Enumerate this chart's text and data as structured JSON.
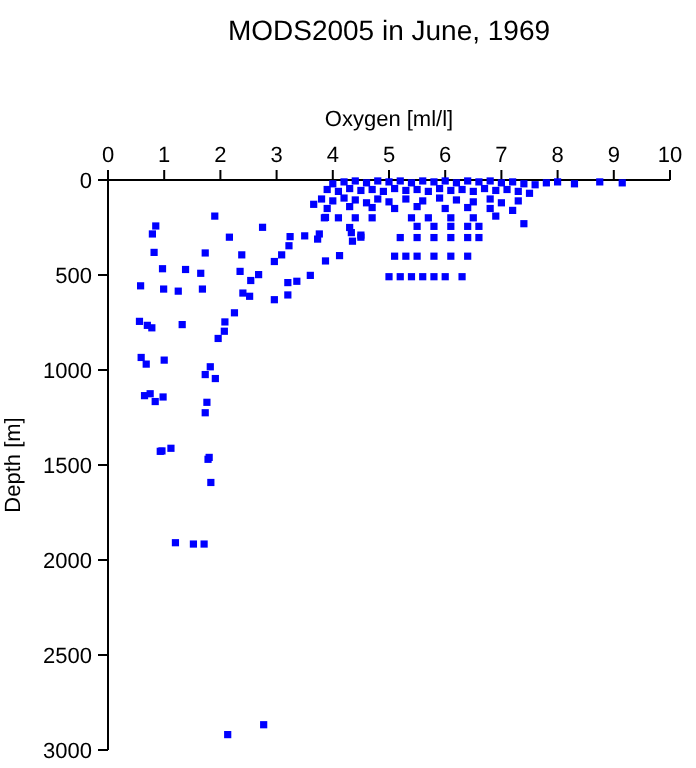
{
  "chart_data": {
    "type": "scatter",
    "title": "MODS2005 in June, 1969",
    "xlabel": "Oxygen [ml/l]",
    "ylabel": "Depth [m]",
    "xlim": [
      0,
      10
    ],
    "xticks": [
      0,
      1,
      2,
      3,
      4,
      5,
      6,
      7,
      8,
      9,
      10
    ],
    "ylim": [
      3000,
      0
    ],
    "yticks": [
      0,
      500,
      1000,
      1500,
      2000,
      2500,
      3000
    ],
    "marker": "square",
    "series": [
      {
        "color": "#0000ff",
        "x": [
          0.85,
          0.79,
          1.9,
          2.75,
          2.16,
          0.82,
          1.73,
          2.38,
          3.22,
          3.09,
          2.96,
          0.97,
          1.38,
          1.65,
          2.35,
          2.68,
          2.54,
          0.58,
          0.99,
          1.25,
          1.68,
          2.4,
          2.52,
          3.2,
          3.36,
          3.6,
          3.2,
          2.96,
          2.25,
          2.08,
          2.07,
          1.96,
          0.56,
          0.7,
          0.78,
          1.32,
          0.59,
          0.68,
          1.0,
          1.82,
          1.73,
          1.91,
          0.65,
          0.75,
          0.84,
          0.98,
          1.76,
          1.73,
          0.96,
          1.12,
          1.8,
          0.93,
          1.78,
          1.83,
          1.2,
          1.52,
          1.71,
          2.13,
          2.77,
          3.24,
          3.5,
          3.76,
          3.87,
          3.73,
          3.87,
          4.12,
          4.35,
          4.5,
          4.33,
          3.66,
          4.0,
          4.2,
          4.4,
          4.6,
          4.8,
          5.0,
          5.2,
          5.4,
          5.6,
          5.8,
          6.0,
          6.2,
          6.4,
          6.6,
          6.8,
          7.0,
          7.2,
          7.4,
          7.6,
          7.8,
          8.0,
          8.3,
          8.75,
          9.15,
          3.9,
          4.1,
          4.3,
          4.5,
          4.7,
          4.9,
          5.1,
          5.3,
          5.5,
          5.7,
          5.9,
          6.1,
          6.3,
          6.5,
          6.7,
          6.9,
          7.1,
          7.3,
          7.5,
          3.8,
          4.0,
          4.2,
          4.4,
          4.6,
          4.8,
          5.0,
          5.3,
          5.6,
          5.9,
          6.2,
          6.5,
          6.8,
          7.0,
          7.3,
          3.9,
          4.3,
          4.7,
          5.1,
          5.5,
          6.0,
          6.4,
          6.8,
          7.2,
          3.85,
          4.1,
          4.4,
          4.7,
          5.4,
          5.7,
          6.1,
          6.5,
          6.9,
          7.4,
          5.5,
          5.8,
          6.1,
          6.4,
          6.6,
          4.3,
          5.2,
          5.5,
          5.8,
          6.1,
          6.4,
          6.6,
          4.5,
          5.1,
          5.3,
          5.5,
          5.8,
          6.1,
          6.4,
          5.0,
          5.2,
          5.4,
          5.6,
          5.8,
          6.0,
          6.3
        ],
        "values": [
          242,
          284,
          190,
          249,
          301,
          381,
          384,
          394,
          346,
          394,
          429,
          467,
          471,
          491,
          481,
          498,
          529,
          557,
          574,
          585,
          574,
          595,
          612,
          540,
          533,
          502,
          605,
          630,
          699,
          747,
          796,
          834,
          744,
          765,
          778,
          761,
          934,
          969,
          948,
          983,
          1024,
          1045,
          1135,
          1125,
          1166,
          1142,
          1170,
          1225,
          1426,
          1412,
          1460,
          1428,
          1470,
          1592,
          1909,
          1916,
          1916,
          2919,
          2867,
          298,
          294,
          284,
          197,
          311,
          426,
          398,
          322,
          301,
          277,
          128,
          20,
          10,
          5,
          15,
          5,
          10,
          5,
          15,
          5,
          10,
          5,
          15,
          5,
          10,
          5,
          15,
          10,
          20,
          25,
          15,
          10,
          20,
          10,
          15,
          50,
          60,
          45,
          55,
          50,
          60,
          45,
          55,
          50,
          60,
          45,
          55,
          50,
          60,
          45,
          55,
          50,
          60,
          70,
          100,
          110,
          95,
          105,
          120,
          100,
          115,
          100,
          110,
          95,
          105,
          115,
          100,
          120,
          110,
          150,
          140,
          145,
          150,
          140,
          150,
          145,
          150,
          160,
          199,
          199,
          199,
          199,
          199,
          199,
          199,
          199,
          190,
          230,
          244,
          244,
          244,
          244,
          244,
          250,
          303,
          303,
          303,
          303,
          303,
          303,
          290,
          401,
          401,
          401,
          401,
          401,
          401,
          509,
          509,
          509,
          509,
          509,
          509,
          509
        ]
      }
    ]
  }
}
